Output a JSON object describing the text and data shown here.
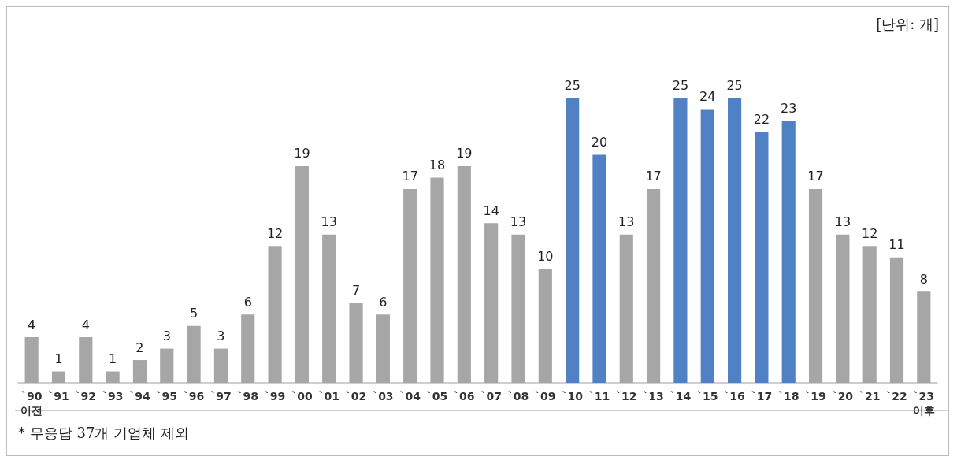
{
  "chart_data": {
    "type": "bar",
    "categories": [
      "`90\n이전",
      "`91",
      "`92",
      "`93",
      "`94",
      "`95",
      "`96",
      "`97",
      "`98",
      "`99",
      "`00",
      "`01",
      "`02",
      "`03",
      "`04",
      "`05",
      "`06",
      "`07",
      "`08",
      "`09",
      "`10",
      "`11",
      "`12",
      "`13",
      "`14",
      "`15",
      "`16",
      "`17",
      "`18",
      "`19",
      "`20",
      "`21",
      "`22",
      "`23\n이후"
    ],
    "values": [
      4,
      1,
      4,
      1,
      2,
      3,
      5,
      3,
      6,
      12,
      19,
      13,
      7,
      6,
      17,
      18,
      19,
      14,
      13,
      10,
      25,
      20,
      13,
      17,
      25,
      24,
      25,
      22,
      23,
      17,
      13,
      12,
      11,
      8
    ],
    "colors": [
      "#a6a6a6",
      "#a6a6a6",
      "#a6a6a6",
      "#a6a6a6",
      "#a6a6a6",
      "#a6a6a6",
      "#a6a6a6",
      "#a6a6a6",
      "#a6a6a6",
      "#a6a6a6",
      "#a6a6a6",
      "#a6a6a6",
      "#a6a6a6",
      "#a6a6a6",
      "#a6a6a6",
      "#a6a6a6",
      "#a6a6a6",
      "#a6a6a6",
      "#a6a6a6",
      "#a6a6a6",
      "#4f81c4",
      "#4f81c4",
      "#a6a6a6",
      "#a6a6a6",
      "#4f81c4",
      "#4f81c4",
      "#4f81c4",
      "#4f81c4",
      "#4f81c4",
      "#a6a6a6",
      "#a6a6a6",
      "#a6a6a6",
      "#a6a6a6",
      "#a6a6a6"
    ],
    "data_labels": true,
    "annotations": [
      "[단위: 개]",
      "* 무응답 37개 기업체 제외"
    ]
  }
}
